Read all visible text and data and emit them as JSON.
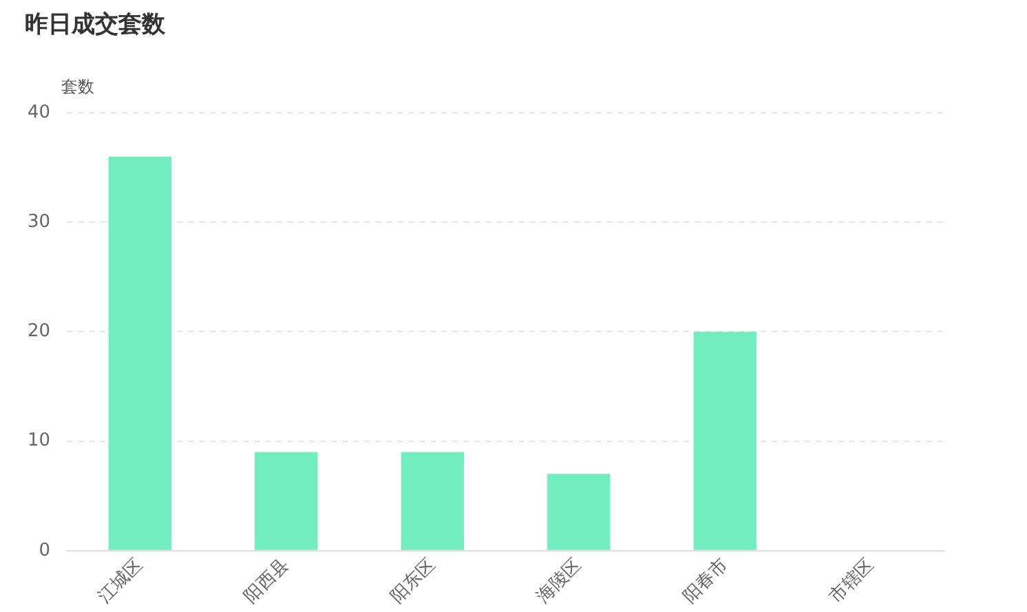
{
  "chart_data": {
    "type": "bar",
    "title": "昨日成交套数",
    "ylabel": "套数",
    "categories": [
      "江城区",
      "阳西县",
      "阳东区",
      "海陵区",
      "阳春市",
      "市辖区"
    ],
    "values": [
      36,
      9,
      9,
      7,
      20,
      0
    ],
    "color": "#72edc0",
    "ylim": [
      0,
      40
    ],
    "yticks": [
      0,
      10,
      20,
      30,
      40
    ],
    "grid": "y"
  }
}
